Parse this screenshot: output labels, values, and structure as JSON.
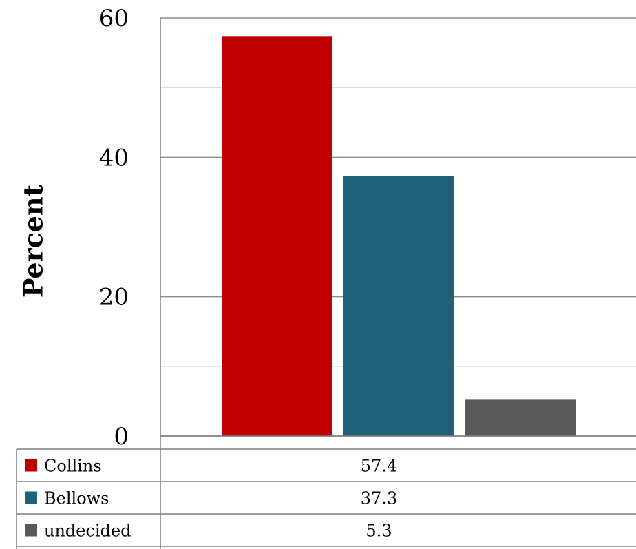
{
  "chart_data": {
    "type": "bar",
    "ylabel": "Percent",
    "ylim": [
      0,
      60
    ],
    "yticks": [
      "0",
      "20",
      "40",
      "60"
    ],
    "grid": true,
    "legend": "data-table-bottom",
    "series": [
      {
        "name": "Collins",
        "values": [
          57.4
        ],
        "label": "57.4",
        "color": "#C00000"
      },
      {
        "name": "Bellows",
        "values": [
          37.3
        ],
        "label": "37.3",
        "color": "#1F6177"
      },
      {
        "name": "undecided",
        "values": [
          5.3
        ],
        "label": "5.3",
        "color": "#595959"
      }
    ]
  }
}
